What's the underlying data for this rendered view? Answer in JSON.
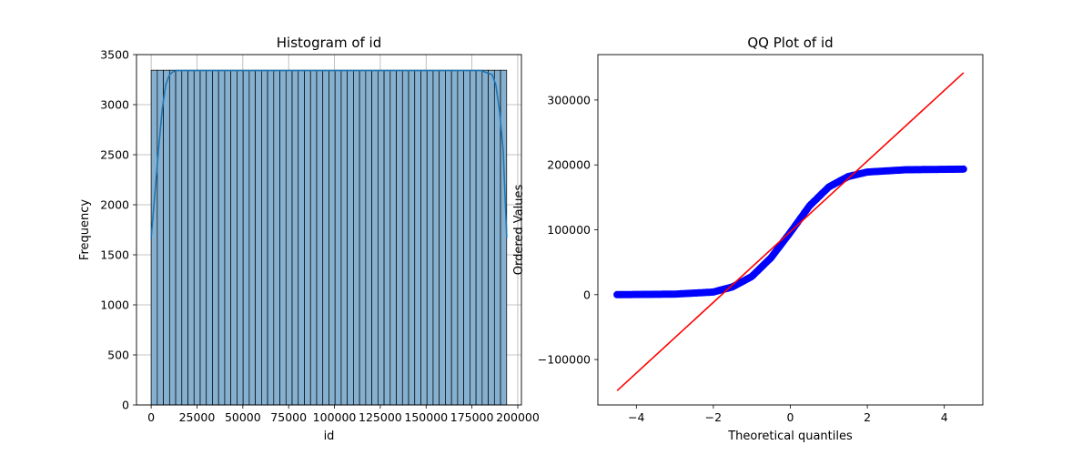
{
  "chart_data": [
    {
      "type": "bar",
      "title": "Histogram of id",
      "xlabel": "id",
      "ylabel": "Frequency",
      "xlim": [
        -8000,
        202000
      ],
      "ylim": [
        0,
        3500
      ],
      "xticks": [
        0,
        25000,
        50000,
        75000,
        100000,
        125000,
        150000,
        175000,
        200000
      ],
      "yticks": [
        0,
        500,
        1000,
        1500,
        2000,
        2500,
        3000,
        3500
      ],
      "grid": true,
      "bar_color": "#86b0d0",
      "kde_color": "#1f77b4",
      "bins": {
        "start": 0,
        "width": 3344,
        "count": 58,
        "values": [
          3344,
          3344,
          3344,
          3344,
          3344,
          3344,
          3344,
          3344,
          3344,
          3344,
          3344,
          3344,
          3344,
          3344,
          3344,
          3344,
          3344,
          3344,
          3344,
          3344,
          3344,
          3344,
          3344,
          3344,
          3344,
          3344,
          3344,
          3344,
          3344,
          3344,
          3344,
          3344,
          3344,
          3344,
          3344,
          3344,
          3344,
          3344,
          3344,
          3344,
          3344,
          3344,
          3344,
          3344,
          3344,
          3344,
          3344,
          3344,
          3344,
          3344,
          3344,
          3344,
          3344,
          3344,
          3344,
          3344,
          3344,
          3344
        ]
      },
      "kde": {
        "x": [
          0,
          2000,
          4000,
          6000,
          8000,
          10000,
          12000,
          14000,
          20000,
          100000,
          180000,
          186000,
          188000,
          190000,
          192000,
          194000
        ],
        "y": [
          1670,
          2100,
          2550,
          2950,
          3200,
          3300,
          3330,
          3340,
          3340,
          3340,
          3340,
          3300,
          3200,
          2950,
          2550,
          1670
        ]
      }
    },
    {
      "type": "scatter",
      "title": "QQ Plot of id",
      "xlabel": "Theoretical quantiles",
      "ylabel": "Ordered Values",
      "xlim": [
        -5,
        5
      ],
      "ylim": [
        -170000,
        370000
      ],
      "xticks": [
        -4,
        -2,
        0,
        2,
        4
      ],
      "yticks": [
        -100000,
        0,
        100000,
        200000,
        300000
      ],
      "ytick_labels": [
        "−100000",
        "0",
        "100000",
        "200000",
        "300000"
      ],
      "xtick_labels": [
        "−4",
        "−2",
        "0",
        "2",
        "4"
      ],
      "point_color": "#0000ff",
      "line_color": "#ff0000",
      "fit_line": {
        "x": [
          -4.5,
          4.5
        ],
        "y": [
          -148000,
          342000
        ]
      },
      "points_curve": {
        "x": [
          -4.5,
          -3.0,
          -2.0,
          -1.5,
          -1.0,
          -0.5,
          0.0,
          0.5,
          1.0,
          1.5,
          2.0,
          3.0,
          4.5
        ],
        "y": [
          0,
          800,
          4000,
          12000,
          28000,
          57000,
          96000,
          137000,
          166000,
          182000,
          189000,
          192500,
          193500
        ]
      }
    }
  ]
}
